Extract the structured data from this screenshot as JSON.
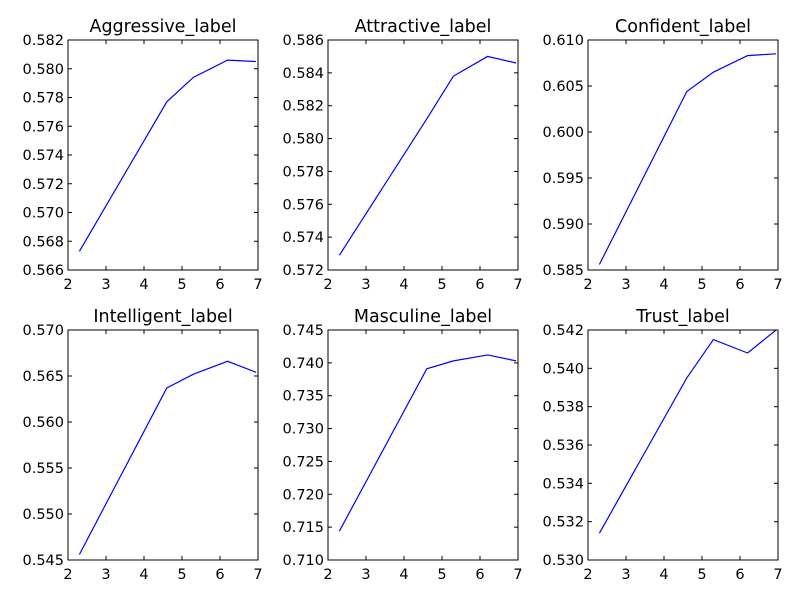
{
  "chart_data": [
    {
      "type": "line",
      "title": "Aggressive_label",
      "xlim": [
        2,
        7
      ],
      "ylim": [
        0.566,
        0.582
      ],
      "xticks": [
        "2",
        "3",
        "4",
        "5",
        "6",
        "7"
      ],
      "yticks": [
        "0.566",
        "0.568",
        "0.570",
        "0.572",
        "0.574",
        "0.576",
        "0.578",
        "0.580",
        "0.582"
      ],
      "x": [
        2.3,
        4.6,
        5.3,
        6.2,
        6.95
      ],
      "y": [
        0.5673,
        0.5777,
        0.5794,
        0.5806,
        0.5805
      ]
    },
    {
      "type": "line",
      "title": "Attractive_label",
      "xlim": [
        2,
        7
      ],
      "ylim": [
        0.572,
        0.586
      ],
      "xticks": [
        "2",
        "3",
        "4",
        "5",
        "6",
        "7"
      ],
      "yticks": [
        "0.572",
        "0.574",
        "0.576",
        "0.578",
        "0.580",
        "0.582",
        "0.584",
        "0.586"
      ],
      "x": [
        2.3,
        4.6,
        5.3,
        6.2,
        6.95
      ],
      "y": [
        0.5729,
        0.5812,
        0.5838,
        0.585,
        0.5846
      ]
    },
    {
      "type": "line",
      "title": "Confident_label",
      "xlim": [
        2,
        7
      ],
      "ylim": [
        0.585,
        0.61
      ],
      "xticks": [
        "2",
        "3",
        "4",
        "5",
        "6",
        "7"
      ],
      "yticks": [
        "0.585",
        "0.590",
        "0.595",
        "0.600",
        "0.605",
        "0.610"
      ],
      "x": [
        2.3,
        4.6,
        5.3,
        6.2,
        6.95
      ],
      "y": [
        0.5856,
        0.6044,
        0.6065,
        0.6083,
        0.6085
      ]
    },
    {
      "type": "line",
      "title": "Intelligent_label",
      "xlim": [
        2,
        7
      ],
      "ylim": [
        0.545,
        0.57
      ],
      "xticks": [
        "2",
        "3",
        "4",
        "5",
        "6",
        "7"
      ],
      "yticks": [
        "0.545",
        "0.550",
        "0.555",
        "0.560",
        "0.565",
        "0.570"
      ],
      "x": [
        2.3,
        4.6,
        5.3,
        6.2,
        6.95
      ],
      "y": [
        0.5456,
        0.5637,
        0.5652,
        0.5666,
        0.5654
      ]
    },
    {
      "type": "line",
      "title": "Masculine_label",
      "xlim": [
        2,
        7
      ],
      "ylim": [
        0.71,
        0.745
      ],
      "xticks": [
        "2",
        "3",
        "4",
        "5",
        "6",
        "7"
      ],
      "yticks": [
        "0.710",
        "0.715",
        "0.720",
        "0.725",
        "0.730",
        "0.735",
        "0.740",
        "0.745"
      ],
      "x": [
        2.3,
        4.6,
        5.3,
        6.2,
        6.95
      ],
      "y": [
        0.7144,
        0.7391,
        0.7403,
        0.7412,
        0.7403
      ]
    },
    {
      "type": "line",
      "title": "Trust_label",
      "xlim": [
        2,
        7
      ],
      "ylim": [
        0.53,
        0.542
      ],
      "xticks": [
        "2",
        "3",
        "4",
        "5",
        "6",
        "7"
      ],
      "yticks": [
        "0.530",
        "0.532",
        "0.534",
        "0.536",
        "0.538",
        "0.540",
        "0.542"
      ],
      "x": [
        2.3,
        4.6,
        5.3,
        6.2,
        6.95
      ],
      "y": [
        0.5314,
        0.5395,
        0.5415,
        0.5408,
        0.542
      ]
    }
  ],
  "colors": {
    "line": "#0000ff",
    "frame": "#000000",
    "background": "#ffffff"
  }
}
